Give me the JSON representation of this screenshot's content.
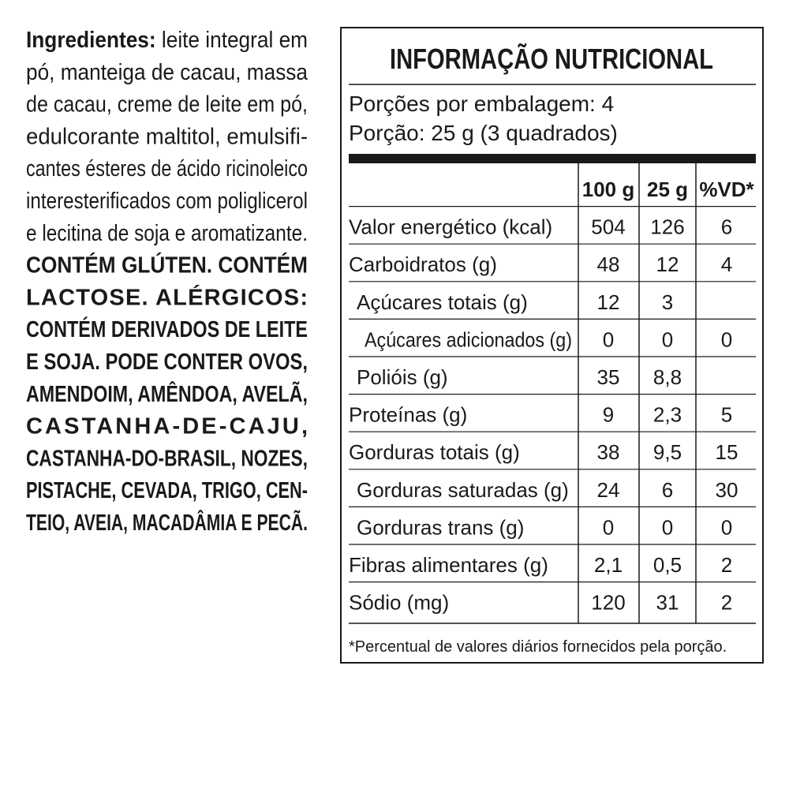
{
  "ingredients": {
    "label": "Ingredientes:",
    "text_lines": [
      "leite integral em",
      "pó, manteiga de cacau, massa",
      "de cacau, creme de leite em pó,",
      "edulcorante maltitol, emulsifi-",
      "cantes ésteres de ácido ricinoleico",
      "interesterificados com poliglicerol",
      "e lecitina de soja e aromatizante."
    ],
    "allergen_lines": [
      "CONTÉM GLÚTEN. CONTÉM",
      "LACTOSE. ALÉRGICOS:",
      "CONTÉM DERIVADOS DE LEITE",
      "E SOJA. PODE CONTER OVOS,",
      "AMENDOIM, AMÊNDOA, AVELÃ,",
      "CASTANHA-DE-CAJU,",
      "CASTANHA-DO-BRASIL, NOZES,",
      "PISTACHE, CEVADA, TRIGO, CEN-",
      "TEIO, AVEIA, MACADÂMIA E PECÃ."
    ]
  },
  "nutrition": {
    "title": "INFORMAÇÃO NUTRICIONAL",
    "servings": "Porções por embalagem: 4",
    "portion": "Porção: 25 g (3 quadrados)",
    "header": [
      "100 g",
      "25 g",
      "%VD*"
    ],
    "rows": [
      {
        "label": "Valor energético (kcal)",
        "indent": 0,
        "values": [
          "504",
          "126",
          "6"
        ]
      },
      {
        "label": "Carboidratos (g)",
        "indent": 0,
        "values": [
          "48",
          "12",
          "4"
        ]
      },
      {
        "label": "Açúcares totais (g)",
        "indent": 1,
        "values": [
          "12",
          "3",
          null
        ]
      },
      {
        "label": "Açúcares adicionados (g)",
        "indent": 2,
        "values": [
          "0",
          "0",
          "0"
        ]
      },
      {
        "label": "Polióis (g)",
        "indent": 1,
        "values": [
          "35",
          "8,8",
          null
        ]
      },
      {
        "label": "Proteínas (g)",
        "indent": 0,
        "values": [
          "9",
          "2,3",
          "5"
        ]
      },
      {
        "label": "Gorduras totais (g)",
        "indent": 0,
        "values": [
          "38",
          "9,5",
          "15"
        ]
      },
      {
        "label": "Gorduras saturadas (g)",
        "indent": 1,
        "values": [
          "24",
          "6",
          "30"
        ]
      },
      {
        "label": "Gorduras trans (g)",
        "indent": 1,
        "values": [
          "0",
          "0",
          "0"
        ]
      },
      {
        "label": "Fibras alimentares (g)",
        "indent": 0,
        "values": [
          "2,1",
          "0,5",
          "2"
        ]
      },
      {
        "label": "Sódio (mg)",
        "indent": 0,
        "values": [
          "120",
          "31",
          "2"
        ]
      }
    ],
    "footnote": "*Percentual de valores diários fornecidos pela porção."
  }
}
